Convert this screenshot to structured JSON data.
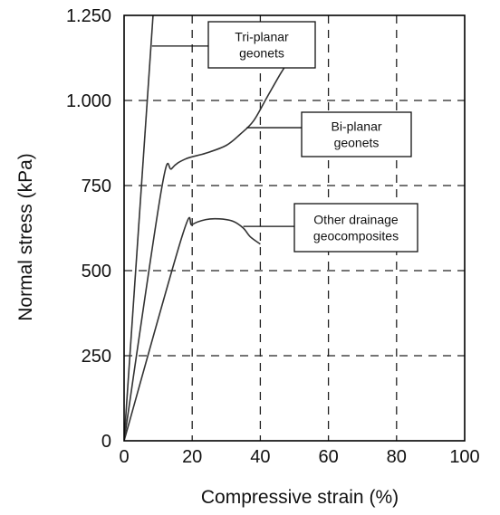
{
  "chart_data": {
    "type": "line",
    "xlabel": "Compressive strain (%)",
    "ylabel": "Normal stress (kPa)",
    "xlim": [
      0,
      100
    ],
    "ylim": [
      0,
      1250
    ],
    "grid": true,
    "x_ticks": [
      0,
      20,
      40,
      60,
      80,
      100
    ],
    "x_tick_labels": [
      "0",
      "20",
      "40",
      "60",
      "80",
      "100"
    ],
    "y_ticks": [
      0,
      250,
      500,
      750,
      1000,
      1250
    ],
    "y_tick_labels": [
      "0",
      "250",
      "500",
      "750",
      "1.000",
      "1.250"
    ],
    "series": [
      {
        "name": "Tri-planar geonets",
        "points": [
          [
            0,
            0
          ],
          [
            8.5,
            1250
          ]
        ],
        "callout_at": [
          8.2,
          1160
        ],
        "label_lines": [
          "Tri-planar",
          "geonets"
        ]
      },
      {
        "name": "Bi-planar geonets",
        "points": [
          [
            0,
            0
          ],
          [
            11,
            740
          ],
          [
            14,
            800
          ],
          [
            18,
            828
          ],
          [
            24,
            845
          ],
          [
            30,
            868
          ],
          [
            34,
            900
          ],
          [
            38,
            940
          ],
          [
            42,
            1010
          ],
          [
            46,
            1080
          ],
          [
            48,
            1110
          ]
        ],
        "callout_at": [
          36,
          920
        ],
        "label_lines": [
          "Bi-planar",
          "geonets"
        ]
      },
      {
        "name": "Other drainage geocomposites",
        "points": [
          [
            0,
            0
          ],
          [
            17,
            600
          ],
          [
            20,
            635
          ],
          [
            24,
            650
          ],
          [
            28,
            652
          ],
          [
            32,
            645
          ],
          [
            35,
            625
          ],
          [
            37,
            600
          ],
          [
            40,
            578
          ]
        ],
        "callout_at": [
          35,
          630
        ],
        "label_lines": [
          "Other drainage",
          "geocomposites"
        ]
      }
    ]
  }
}
